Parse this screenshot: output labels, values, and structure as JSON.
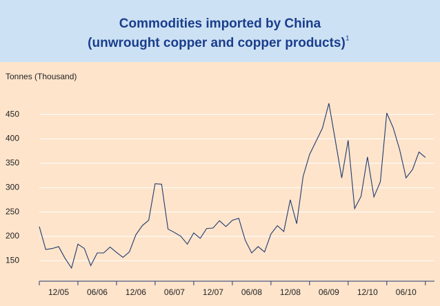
{
  "chart_data": {
    "type": "line",
    "title": "Commodities imported by China",
    "subtitle": "(unwrought copper and copper products)",
    "footnote_mark": "1",
    "y_label": "Tonnes (Thousand)",
    "categories": [
      null,
      null,
      null,
      "12/05",
      null,
      null,
      null,
      null,
      null,
      "06/06",
      null,
      null,
      null,
      null,
      null,
      "12/06",
      null,
      null,
      null,
      null,
      null,
      "06/07",
      null,
      null,
      null,
      null,
      null,
      "12/07",
      null,
      null,
      null,
      null,
      null,
      "06/08",
      null,
      null,
      null,
      null,
      null,
      "12/08",
      null,
      null,
      null,
      null,
      null,
      "06/09",
      null,
      null,
      null,
      null,
      null,
      "12/10",
      null,
      null,
      null,
      null,
      null,
      "06/10",
      null,
      null,
      null
    ],
    "series": [
      {
        "name": null,
        "color": "#1f3a6e",
        "values": [
          220,
          173,
          175,
          179,
          155,
          135,
          184,
          175,
          140,
          166,
          166,
          178,
          167,
          157,
          168,
          203,
          222,
          233,
          308,
          307,
          215,
          208,
          200,
          184,
          207,
          196,
          216,
          217,
          232,
          220,
          233,
          237,
          192,
          166,
          179,
          168,
          205,
          222,
          210,
          275,
          226,
          323,
          368,
          395,
          422,
          473,
          397,
          320,
          397,
          257,
          282,
          363,
          281,
          312,
          453,
          423,
          378,
          320,
          337,
          373,
          362
        ]
      }
    ],
    "ylim": [
      108,
      487
    ],
    "yticks": [
      150,
      200,
      250,
      300,
      350,
      400,
      450
    ],
    "grid": true
  }
}
